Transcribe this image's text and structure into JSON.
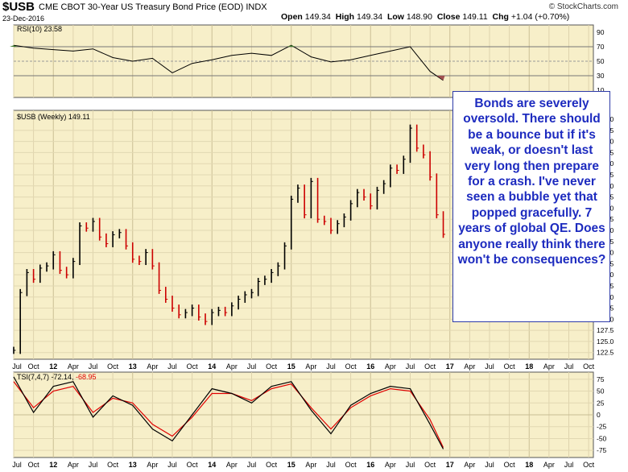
{
  "header": {
    "symbol": "$USB",
    "description": "CME CBOT 30-Year US Treasury Bond Price (EOD)  INDX",
    "date": "23-Dec-2016",
    "brand": "© StockCharts.com",
    "open_label": "Open",
    "open": "149.34",
    "high_label": "High",
    "high": "149.34",
    "low_label": "Low",
    "low": "148.90",
    "close_label": "Close",
    "close": "149.11",
    "chg_label": "Chg",
    "chg": "+1.04 (+0.70%)"
  },
  "annotation": "Bonds are severely oversold. There should be a bounce but if it's weak, or doesn't last very long then prepare for a crash. I've never seen a bubble yet that popped gracefully. 7 years of global QE. Does anyone really think there won't be consequences?",
  "colors": {
    "panel_bg": "#f7efc9",
    "up": "#000000",
    "down": "#cc0000",
    "rsi_overbought_fill": "#3d7a2a",
    "rsi_oversold_fill": "#a05050",
    "tsi_signal": "#e00000",
    "annotation_text": "#1d2bbf"
  },
  "chart_data": [
    {
      "type": "line",
      "panel": "rsi",
      "legend": "RSI(10) 23.58",
      "y_ticks": [
        10,
        30,
        50,
        70,
        90
      ],
      "ylim": [
        0,
        100
      ],
      "reference_lines": [
        30,
        50,
        70
      ],
      "x": [
        "2011-07",
        "2011-10",
        "2012-01",
        "2012-04",
        "2012-07",
        "2012-10",
        "2013-01",
        "2013-04",
        "2013-07",
        "2013-10",
        "2014-01",
        "2014-04",
        "2014-07",
        "2014-10",
        "2015-01",
        "2015-04",
        "2015-07",
        "2015-10",
        "2016-01",
        "2016-04",
        "2016-07",
        "2016-10",
        "2016-12"
      ],
      "series": [
        {
          "name": "RSI(10)",
          "values": [
            72,
            68,
            66,
            64,
            67,
            55,
            50,
            54,
            34,
            47,
            52,
            58,
            61,
            58,
            72,
            56,
            49,
            52,
            58,
            64,
            70,
            36,
            23.58
          ]
        }
      ]
    },
    {
      "type": "bar",
      "panel": "price",
      "legend": "$USB (Weekly) 149.11",
      "y_ticks": [
        122.5,
        125.0,
        127.5,
        130.0,
        132.5,
        135.0,
        137.5,
        140.0,
        142.5,
        145.0,
        147.5,
        150.0,
        152.5,
        155.0,
        157.5,
        160.0,
        162.5,
        165.0,
        167.5,
        170.0,
        172.5,
        175.0
      ],
      "ylim": [
        121.0,
        177.0
      ],
      "x": [
        "2011-07",
        "2011-08",
        "2011-09",
        "2011-10",
        "2011-11",
        "2011-12",
        "2012-01",
        "2012-02",
        "2012-03",
        "2012-04",
        "2012-05",
        "2012-06",
        "2012-07",
        "2012-08",
        "2012-09",
        "2012-10",
        "2012-11",
        "2012-12",
        "2013-01",
        "2013-02",
        "2013-03",
        "2013-04",
        "2013-05",
        "2013-06",
        "2013-07",
        "2013-08",
        "2013-09",
        "2013-10",
        "2013-11",
        "2013-12",
        "2014-01",
        "2014-02",
        "2014-03",
        "2014-04",
        "2014-05",
        "2014-06",
        "2014-07",
        "2014-08",
        "2014-09",
        "2014-10",
        "2014-11",
        "2014-12",
        "2015-01",
        "2015-02",
        "2015-03",
        "2015-04",
        "2015-05",
        "2015-06",
        "2015-07",
        "2015-08",
        "2015-09",
        "2015-10",
        "2015-11",
        "2015-12",
        "2016-01",
        "2016-02",
        "2016-03",
        "2016-04",
        "2016-05",
        "2016-06",
        "2016-07",
        "2016-08",
        "2016-09",
        "2016-10",
        "2016-11",
        "2016-12"
      ],
      "series": [
        {
          "name": "$USB",
          "values": [
            123.0,
            136.0,
            140.5,
            139.0,
            141.5,
            142.0,
            144.5,
            141.0,
            140.0,
            143.0,
            151.0,
            150.5,
            152.0,
            148.5,
            147.0,
            149.0,
            149.5,
            146.5,
            143.5,
            143.0,
            145.0,
            142.0,
            136.5,
            134.5,
            132.5,
            131.0,
            131.5,
            132.5,
            130.5,
            129.5,
            131.5,
            132.0,
            131.5,
            133.0,
            134.5,
            135.5,
            136.0,
            138.5,
            139.0,
            140.5,
            142.0,
            146.5,
            157.0,
            159.5,
            153.5,
            161.0,
            152.5,
            152.0,
            150.0,
            151.5,
            153.0,
            156.0,
            158.5,
            157.5,
            155.5,
            159.0,
            160.5,
            164.0,
            163.5,
            166.0,
            173.0,
            168.5,
            167.0,
            162.0,
            153.5,
            149.11
          ]
        }
      ]
    },
    {
      "type": "line",
      "panel": "tsi",
      "legend_main": "TSI(7,4,7) -72.14,",
      "legend_signal": "-68.95",
      "y_ticks": [
        75,
        50,
        25,
        0,
        -25,
        -50,
        -75
      ],
      "ylim": [
        -90,
        90
      ],
      "x": [
        "2011-07",
        "2011-10",
        "2012-01",
        "2012-04",
        "2012-07",
        "2012-10",
        "2013-01",
        "2013-04",
        "2013-07",
        "2013-10",
        "2014-01",
        "2014-04",
        "2014-07",
        "2014-10",
        "2015-01",
        "2015-04",
        "2015-07",
        "2015-10",
        "2016-01",
        "2016-04",
        "2016-07",
        "2016-10",
        "2016-12"
      ],
      "series": [
        {
          "name": "TSI(7,4,7)",
          "values": [
            80,
            5,
            60,
            70,
            -5,
            40,
            20,
            -30,
            -55,
            0,
            55,
            45,
            25,
            60,
            70,
            10,
            -40,
            20,
            45,
            60,
            55,
            -20,
            -72.14
          ]
        },
        {
          "name": "Signal",
          "values": [
            70,
            15,
            50,
            60,
            5,
            35,
            25,
            -20,
            -45,
            -5,
            45,
            45,
            30,
            55,
            65,
            15,
            -30,
            15,
            40,
            55,
            50,
            -10,
            -68.95
          ]
        }
      ]
    }
  ],
  "x_axis_labels": [
    "Jul",
    "Oct",
    "12",
    "Apr",
    "Jul",
    "Oct",
    "13",
    "Apr",
    "Jul",
    "Oct",
    "14",
    "Apr",
    "Jul",
    "Oct",
    "15",
    "Apr",
    "Jul",
    "Oct",
    "16",
    "Apr",
    "Jul",
    "Oct",
    "17",
    "Apr",
    "Jul",
    "Oct",
    "18",
    "Apr",
    "Jul",
    "Oct"
  ]
}
